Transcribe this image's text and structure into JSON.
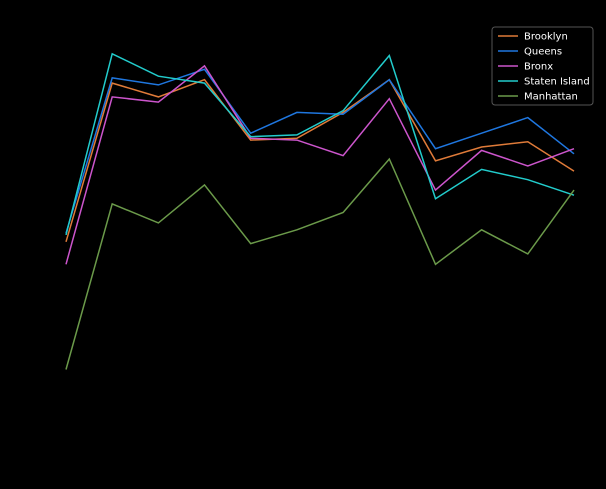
{
  "chart_data": {
    "type": "line",
    "title": "",
    "xlabel": "",
    "ylabel": "",
    "x": [
      0,
      1,
      2,
      3,
      4,
      5,
      6,
      7,
      8,
      9,
      10,
      11
    ],
    "ylim": [
      0,
      100
    ],
    "grid": false,
    "legend_position": "top-right",
    "series": [
      {
        "name": "Brooklyn",
        "color": "#e07b39",
        "values": [
          41.5,
          87.5,
          83.5,
          88.5,
          71.0,
          71.5,
          79.0,
          88.5,
          65.0,
          69.0,
          70.5,
          62.0
        ]
      },
      {
        "name": "Queens",
        "color": "#1f77e0",
        "values": [
          44.0,
          89.0,
          87.0,
          91.5,
          73.0,
          79.0,
          78.5,
          88.5,
          68.5,
          73.0,
          77.5,
          67.0
        ]
      },
      {
        "name": "Bronx",
        "color": "#cc55cc",
        "values": [
          35.0,
          83.5,
          82.0,
          92.5,
          71.5,
          71.0,
          66.5,
          83.0,
          56.5,
          68.0,
          63.5,
          68.5
        ]
      },
      {
        "name": "Staten Island",
        "color": "#22cccc",
        "values": [
          43.5,
          96.0,
          89.5,
          87.5,
          72.0,
          72.5,
          79.5,
          95.5,
          54.0,
          62.5,
          59.5,
          55.0
        ]
      },
      {
        "name": "Manhattan",
        "color": "#6b9a4a",
        "values": [
          4.5,
          52.5,
          47.0,
          58.0,
          41.0,
          45.0,
          50.0,
          65.5,
          35.0,
          45.0,
          38.0,
          56.5
        ]
      }
    ]
  }
}
